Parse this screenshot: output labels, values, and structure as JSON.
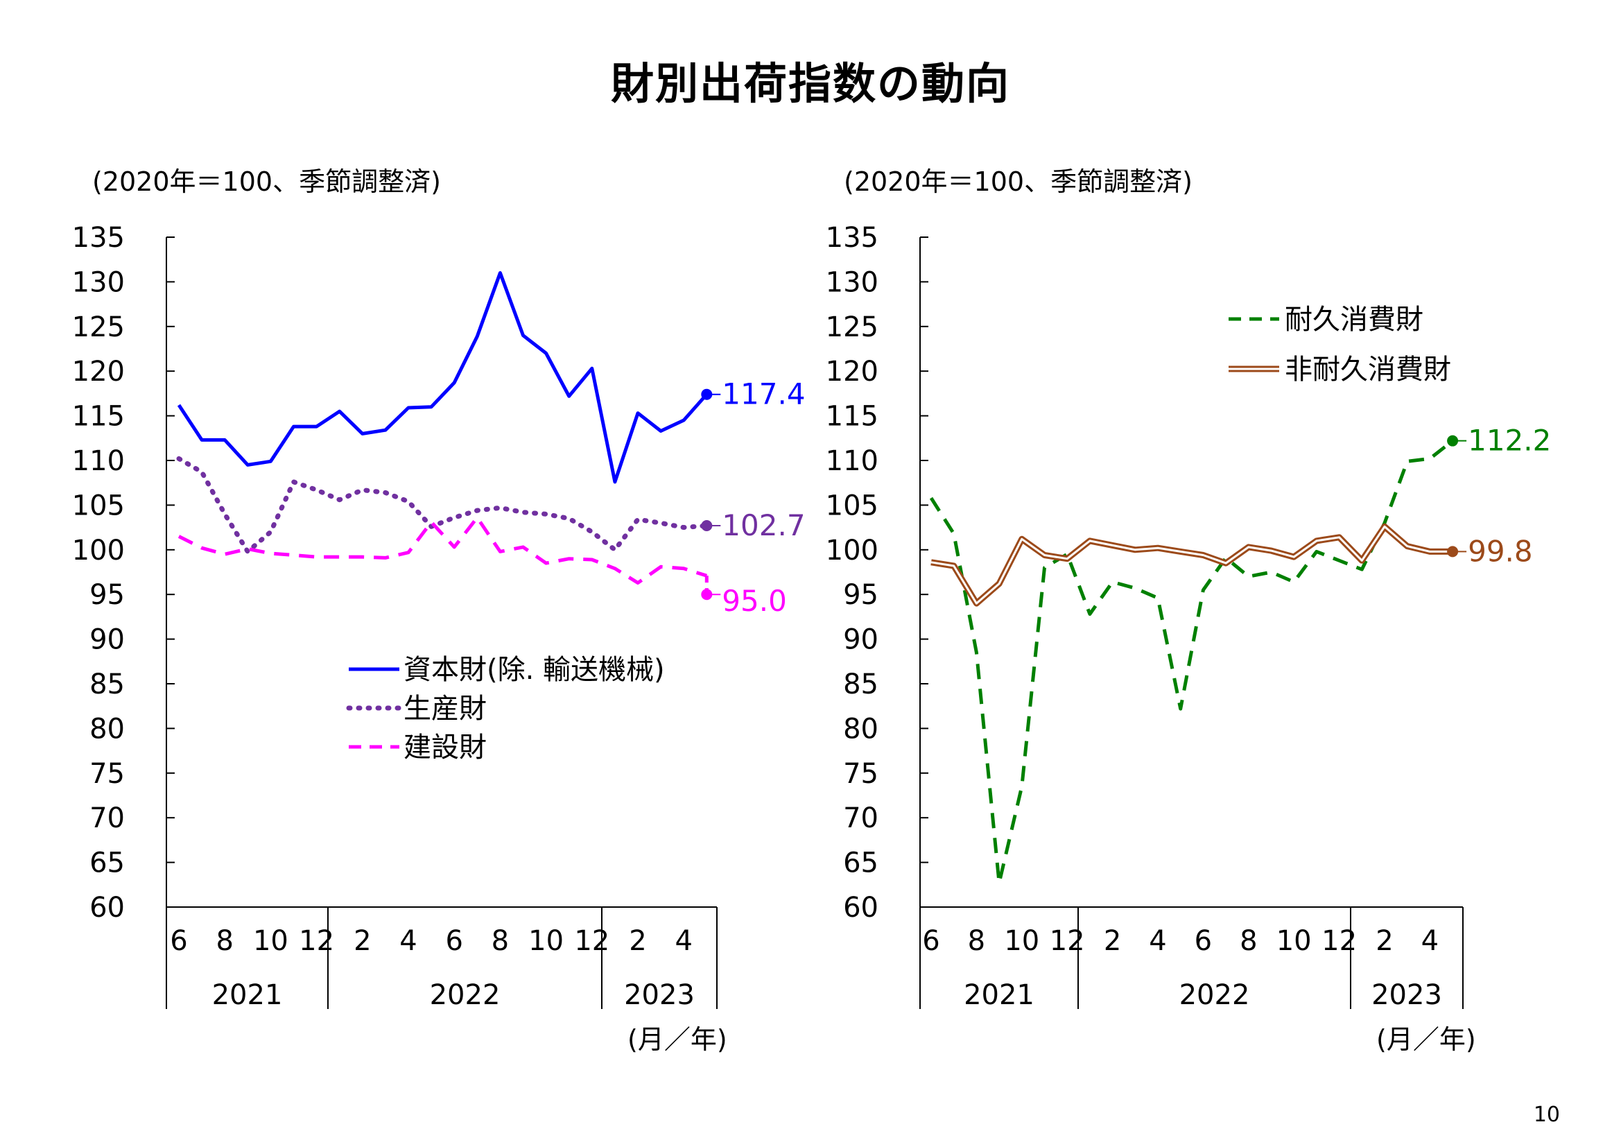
{
  "page": {
    "title": "財別出荷指数の動向",
    "page_number": "10"
  },
  "chart_data": [
    {
      "type": "line",
      "unit_label": "(2020年＝100、季節調整済)",
      "x_unit_label": "(月／年)",
      "ylim": [
        60,
        135
      ],
      "y_ticks": [
        "135",
        "130",
        "125",
        "120",
        "115",
        "110",
        "105",
        "100",
        "95",
        "90",
        "85",
        "80",
        "75",
        "70",
        "65",
        "60"
      ],
      "x_ticks": [
        "6",
        "8",
        "10",
        "12",
        "2",
        "4",
        "6",
        "8",
        "10",
        "12",
        "2",
        "4"
      ],
      "year_labels": [
        "2021",
        "2022",
        "2023"
      ],
      "categories": [
        "2021-06",
        "2021-07",
        "2021-08",
        "2021-09",
        "2021-10",
        "2021-11",
        "2021-12",
        "2022-01",
        "2022-02",
        "2022-03",
        "2022-04",
        "2022-05",
        "2022-06",
        "2022-07",
        "2022-08",
        "2022-09",
        "2022-10",
        "2022-11",
        "2022-12",
        "2023-01",
        "2023-02",
        "2023-03",
        "2023-04",
        "2023-05"
      ],
      "series": [
        {
          "name": "資本財(除. 輸送機械)",
          "color": "#0000ff",
          "style": "solid",
          "end_label": "117.4",
          "values": [
            116.2,
            112.3,
            112.3,
            109.5,
            109.9,
            113.8,
            113.8,
            115.5,
            113.0,
            113.4,
            115.9,
            116.0,
            118.7,
            123.9,
            131.0,
            124.0,
            122.0,
            117.2,
            120.3,
            107.6,
            115.3,
            113.3,
            114.5,
            117.4
          ]
        },
        {
          "name": "生産財",
          "color": "#7030a0",
          "style": "dotted",
          "end_label": "102.7",
          "values": [
            110.2,
            108.7,
            104.0,
            99.8,
            102.0,
            107.6,
            106.7,
            105.6,
            106.7,
            106.4,
            105.4,
            102.6,
            103.6,
            104.4,
            104.7,
            104.2,
            104.0,
            103.5,
            102.0,
            100.0,
            103.4,
            103.0,
            102.5,
            102.7
          ]
        },
        {
          "name": "建設財",
          "color": "#ff00ff",
          "style": "dashed",
          "end_label": "95.0",
          "values": [
            101.5,
            100.2,
            99.5,
            100.1,
            99.6,
            99.4,
            99.2,
            99.2,
            99.2,
            99.1,
            99.7,
            103.1,
            100.3,
            103.6,
            99.8,
            100.3,
            98.5,
            99.0,
            98.9,
            97.9,
            96.3,
            98.1,
            97.9,
            97.1
          ]
        }
      ],
      "series_extra_last": {
        "建設財": 95.0
      },
      "legend_position": "lower-middle"
    },
    {
      "type": "line",
      "unit_label": "(2020年＝100、季節調整済)",
      "x_unit_label": "(月／年)",
      "ylim": [
        60,
        135
      ],
      "y_ticks": [
        "135",
        "130",
        "125",
        "120",
        "115",
        "110",
        "105",
        "100",
        "95",
        "90",
        "85",
        "80",
        "75",
        "70",
        "65",
        "60"
      ],
      "x_ticks": [
        "6",
        "8",
        "10",
        "12",
        "2",
        "4",
        "6",
        "8",
        "10",
        "12",
        "2",
        "4"
      ],
      "year_labels": [
        "2021",
        "2022",
        "2023"
      ],
      "categories": [
        "2021-06",
        "2021-07",
        "2021-08",
        "2021-09",
        "2021-10",
        "2021-11",
        "2021-12",
        "2022-01",
        "2022-02",
        "2022-03",
        "2022-04",
        "2022-05",
        "2022-06",
        "2022-07",
        "2022-08",
        "2022-09",
        "2022-10",
        "2022-11",
        "2022-12",
        "2023-01",
        "2023-02",
        "2023-03",
        "2023-04",
        "2023-05"
      ],
      "series": [
        {
          "name": "耐久消費財",
          "color": "#008000",
          "style": "dashed",
          "end_label": "112.2",
          "values": [
            105.8,
            101.8,
            88.5,
            62.7,
            73.5,
            98.0,
            99.5,
            92.8,
            96.4,
            95.7,
            94.6,
            82.2,
            95.5,
            99.1,
            97.0,
            97.5,
            96.4,
            99.8,
            98.8,
            97.8,
            103.0,
            109.9,
            110.2,
            112.2
          ]
        },
        {
          "name": "非耐久消費財",
          "color": "#9c4a1a",
          "style": "double",
          "end_label": "99.8",
          "values": [
            98.6,
            98.2,
            94.0,
            96.2,
            101.2,
            99.4,
            99.0,
            101.0,
            100.5,
            100.0,
            100.2,
            99.8,
            99.4,
            98.5,
            100.3,
            99.9,
            99.2,
            101.0,
            101.4,
            98.8,
            102.6,
            100.4,
            99.8,
            99.8
          ]
        }
      ],
      "legend_position": "upper-right"
    }
  ]
}
